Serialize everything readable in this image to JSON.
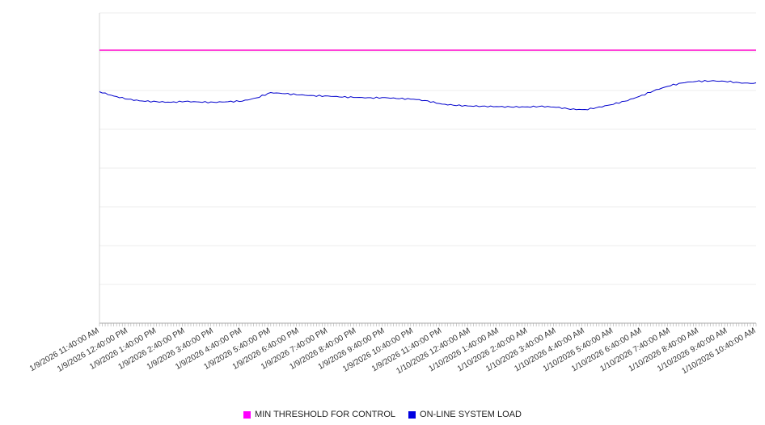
{
  "chart_data": {
    "type": "line",
    "title": "",
    "x_axis": {
      "categories": [
        "1/9/2026 11:40:00 AM",
        "1/9/2026 12:40:00 PM",
        "1/9/2026 1:40:00 PM",
        "1/9/2026 2:40:00 PM",
        "1/9/2026 3:40:00 PM",
        "1/9/2026 4:40:00 PM",
        "1/9/2026 5:40:00 PM",
        "1/9/2026 6:40:00 PM",
        "1/9/2026 7:40:00 PM",
        "1/9/2026 8:40:00 PM",
        "1/9/2026 9:40:00 PM",
        "1/9/2026 10:40:00 PM",
        "1/9/2026 11:40:00 PM",
        "1/10/2026 12:40:00 AM",
        "1/10/2026 1:40:00 AM",
        "1/10/2026 2:40:00 AM",
        "1/10/2026 3:40:00 AM",
        "1/10/2026 4:40:00 AM",
        "1/10/2026 5:40:00 AM",
        "1/10/2026 6:40:00 AM",
        "1/10/2026 7:40:00 AM",
        "1/10/2026 8:40:00 AM",
        "1/10/2026 9:40:00 AM",
        "1/10/2026 10:40:00 AM"
      ],
      "minor_tick_minutes": 6,
      "label_rotation_deg": -30
    },
    "y_axis": {
      "min": 0,
      "max": 100,
      "gridline_divisions": 8,
      "labels_visible": false,
      "grid_on": true
    },
    "series": [
      {
        "name": "MIN THRESHOLD FOR CONTROL",
        "type": "threshold",
        "color": "#ff00cc",
        "value": 88
      },
      {
        "name": "ON-LINE SYSTEM LOAD",
        "type": "line",
        "color": "#0000cd",
        "step_hours": 0.5,
        "values": [
          74.6,
          73.2,
          72.2,
          71.6,
          71.4,
          71.2,
          71.5,
          71.3,
          71.2,
          71.4,
          71.6,
          72.6,
          74.3,
          74.0,
          73.6,
          73.3,
          73.2,
          72.9,
          72.8,
          72.6,
          72.7,
          72.4,
          72.2,
          71.6,
          70.6,
          70.2,
          70.0,
          69.9,
          69.8,
          69.7,
          69.7,
          69.9,
          69.6,
          69.0,
          68.8,
          69.6,
          70.6,
          71.8,
          73.4,
          75.2,
          76.6,
          77.6,
          78.0,
          78.1,
          77.9,
          77.4,
          77.3
        ]
      }
    ],
    "legend": {
      "position": "bottom",
      "items": [
        {
          "label": "MIN THRESHOLD FOR CONTROL",
          "color": "#ff00ff"
        },
        {
          "label": "ON-LINE SYSTEM LOAD",
          "color": "#0000e0"
        }
      ]
    },
    "colors": {
      "gridline": "#ececec",
      "axis_line": "#aaaaaa",
      "left_axis_line": "#d5d5d5",
      "minor_tick": "#aaaaaa",
      "tick_label": "#333333"
    }
  }
}
